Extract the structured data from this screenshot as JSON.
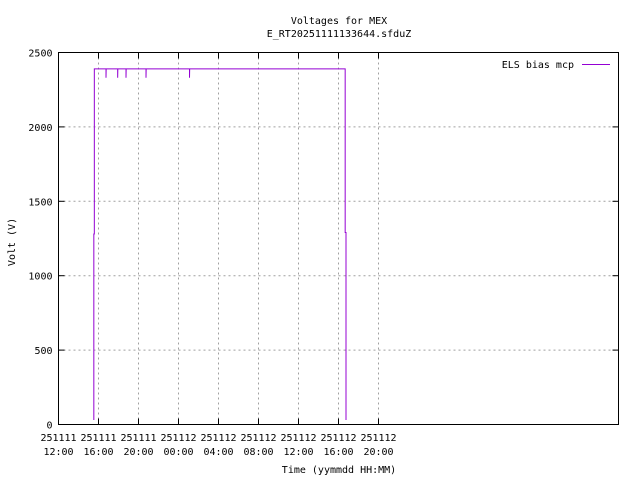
{
  "chart_data": {
    "type": "line",
    "title": "Voltages for MEX",
    "subtitle": "E_RT20251111133644.sfduZ",
    "xlabel": "Time (yymmdd HH:MM)",
    "ylabel": "Volt (V)",
    "xlim": [
      "2025-11-11 12:00",
      "2025-11-13 20:00"
    ],
    "ylim": [
      0,
      2500
    ],
    "grid": true,
    "legend_position": "top-right",
    "x_ticks": [
      {
        "value": "2025-11-11 12:00",
        "date": "251111",
        "time": "12:00"
      },
      {
        "value": "2025-11-11 16:00",
        "date": "251111",
        "time": "16:00"
      },
      {
        "value": "2025-11-11 20:00",
        "date": "251111",
        "time": "20:00"
      },
      {
        "value": "2025-11-12 00:00",
        "date": "251112",
        "time": "00:00"
      },
      {
        "value": "2025-11-12 04:00",
        "date": "251112",
        "time": "04:00"
      },
      {
        "value": "2025-11-12 08:00",
        "date": "251112",
        "time": "08:00"
      },
      {
        "value": "2025-11-12 12:00",
        "date": "251112",
        "time": "12:00"
      },
      {
        "value": "2025-11-12 16:00",
        "date": "251112",
        "time": "16:00"
      },
      {
        "value": "2025-11-12 20:00",
        "date": "251112",
        "time": "20:00"
      }
    ],
    "y_ticks": [
      {
        "value": 0,
        "label": "0"
      },
      {
        "value": 500,
        "label": "500"
      },
      {
        "value": 1000,
        "label": "1000"
      },
      {
        "value": 1500,
        "label": "1500"
      },
      {
        "value": 2000,
        "label": "2000"
      },
      {
        "value": 2500,
        "label": "2500"
      }
    ],
    "series": [
      {
        "name": "ELS bias mcp",
        "color": "#9400d3",
        "points": [
          [
            "2025-11-11 15:32",
            30
          ],
          [
            "2025-11-11 15:32",
            1280
          ],
          [
            "2025-11-11 15:35",
            1280
          ],
          [
            "2025-11-11 15:35",
            2390
          ],
          [
            "2025-11-11 16:45",
            2390
          ],
          [
            "2025-11-11 16:45",
            2330
          ],
          [
            "2025-11-11 16:46",
            2390
          ],
          [
            "2025-11-11 17:55",
            2390
          ],
          [
            "2025-11-11 17:55",
            2330
          ],
          [
            "2025-11-11 17:56",
            2390
          ],
          [
            "2025-11-11 18:45",
            2390
          ],
          [
            "2025-11-11 18:45",
            2330
          ],
          [
            "2025-11-11 18:46",
            2390
          ],
          [
            "2025-11-11 20:45",
            2390
          ],
          [
            "2025-11-11 20:45",
            2330
          ],
          [
            "2025-11-11 20:46",
            2390
          ],
          [
            "2025-11-12 01:06",
            2390
          ],
          [
            "2025-11-12 01:06",
            2330
          ],
          [
            "2025-11-12 01:07",
            2390
          ],
          [
            "2025-11-12 16:40",
            2390
          ],
          [
            "2025-11-12 16:40",
            1290
          ],
          [
            "2025-11-12 16:45",
            1290
          ],
          [
            "2025-11-12 16:45",
            30
          ]
        ]
      }
    ]
  }
}
